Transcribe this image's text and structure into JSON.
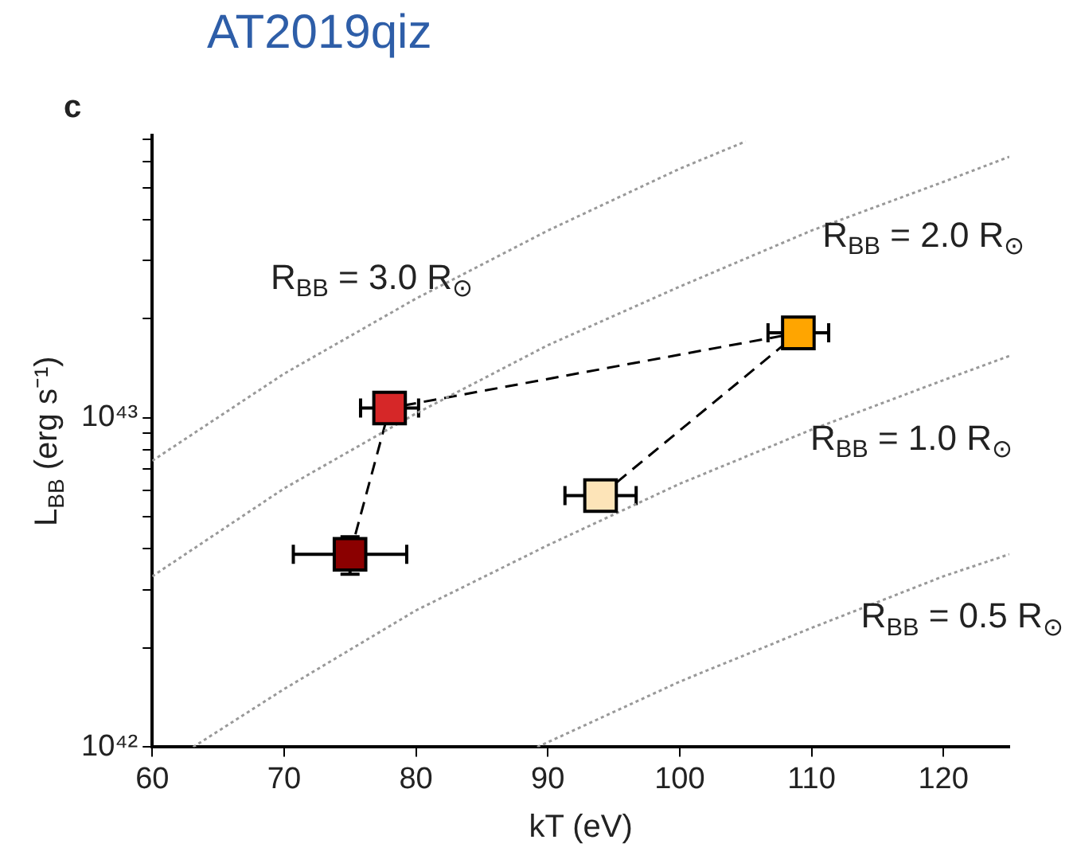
{
  "chart_data": {
    "type": "scatter",
    "title": "AT2019qiz",
    "xlabel": "kT (eV)",
    "ylabel": "L$_{BB}$ (erg s⁻¹)",
    "log": "y",
    "grid": false,
    "xlim": [
      60,
      125
    ],
    "ylim": [
      1e+42,
      7.2e+43
    ],
    "xticks": [
      60,
      70,
      80,
      90,
      100,
      110,
      120
    ],
    "yticks": [
      {
        "value": 1e+42,
        "label": "10⁴²"
      },
      {
        "value": 2e+42,
        "label": null
      },
      {
        "value": 3e+42,
        "label": null
      },
      {
        "value": 4e+42,
        "label": null
      },
      {
        "value": 5e+42,
        "label": null
      },
      {
        "value": 6e+42,
        "label": null
      },
      {
        "value": 7e+42,
        "label": null
      },
      {
        "value": 8e+42,
        "label": null
      },
      {
        "value": 9e+42,
        "label": null
      },
      {
        "value": 1e+43,
        "label": "10⁴³"
      },
      {
        "value": 2e+43,
        "label": null
      },
      {
        "value": 3e+43,
        "label": null
      },
      {
        "value": 4e+43,
        "label": null
      },
      {
        "value": 5e+43,
        "label": null
      },
      {
        "value": 6e+43,
        "label": null
      },
      {
        "value": 7e+43,
        "label": null
      }
    ],
    "series": [
      {
        "name": "R$_{BB}$ = 3.0 R$_{⊙}$",
        "type": "line",
        "color": "#999999",
        "line_style": "dotted",
        "marker": "none",
        "x": [
          60,
          70,
          80,
          90,
          100,
          105
        ],
        "values": [
          7.4e+42,
          1.36e+43,
          2.3e+43,
          3.7e+43,
          5.7e+43,
          6.9e+43
        ]
      },
      {
        "name": "R$_{BB}$ = 2.0 R$_{⊙}$",
        "type": "line",
        "color": "#999999",
        "line_style": "dotted",
        "marker": "none",
        "x": [
          60,
          70,
          80,
          90,
          100,
          110,
          120,
          125
        ],
        "values": [
          3.3e+42,
          6.1e+42,
          1.03e+43,
          1.66e+43,
          2.5e+43,
          3.7e+43,
          5.2e+43,
          6.2e+43
        ]
      },
      {
        "name": "R$_{BB}$ = 1.0 R$_{⊙}$",
        "type": "line",
        "color": "#999999",
        "line_style": "dotted",
        "marker": "none",
        "x": [
          63.1,
          70,
          80,
          90,
          100,
          110,
          120,
          125
        ],
        "values": [
          1e+42,
          1.5e+42,
          2.6e+42,
          4.1e+42,
          6.3e+42,
          9.2e+42,
          1.3e+43,
          1.54e+43
        ]
      },
      {
        "name": "R$_{BB}$ = 0.5 R$_{⊙}$",
        "type": "line",
        "color": "#999999",
        "line_style": "dotted",
        "marker": "none",
        "x": [
          89.2,
          100,
          110,
          120,
          125
        ],
        "values": [
          1e+42,
          1.58e+42,
          2.3e+42,
          3.3e+42,
          3.85e+42
        ]
      },
      {
        "type": "line",
        "color": "#000000",
        "line_style": "dashed",
        "marker": "none",
        "x": [
          75,
          78,
          109
        ],
        "values": [
          3.85e+42,
          1.07e+43,
          1.81e+43
        ]
      },
      {
        "type": "line",
        "color": "#000000",
        "line_style": "dashed",
        "marker": "none",
        "x": [
          94,
          109
        ],
        "values": [
          5.8e+42,
          1.81e+43
        ]
      },
      {
        "type": "scatter",
        "color": "#000000",
        "marker": "square",
        "colors": [
          "#8b0000",
          "#d62728",
          "#ffa500",
          "#fde4b8"
        ],
        "x": [
          75,
          78,
          109,
          94
        ],
        "values": [
          3.85e+42,
          1.07e+43,
          1.81e+43,
          5.8e+42
        ],
        "xerrors": [
          4.3,
          2.2,
          2.3,
          2.7
        ],
        "errors": [
          5e+41,
          null,
          null,
          null
        ]
      }
    ],
    "annotations": [
      "c"
    ]
  }
}
